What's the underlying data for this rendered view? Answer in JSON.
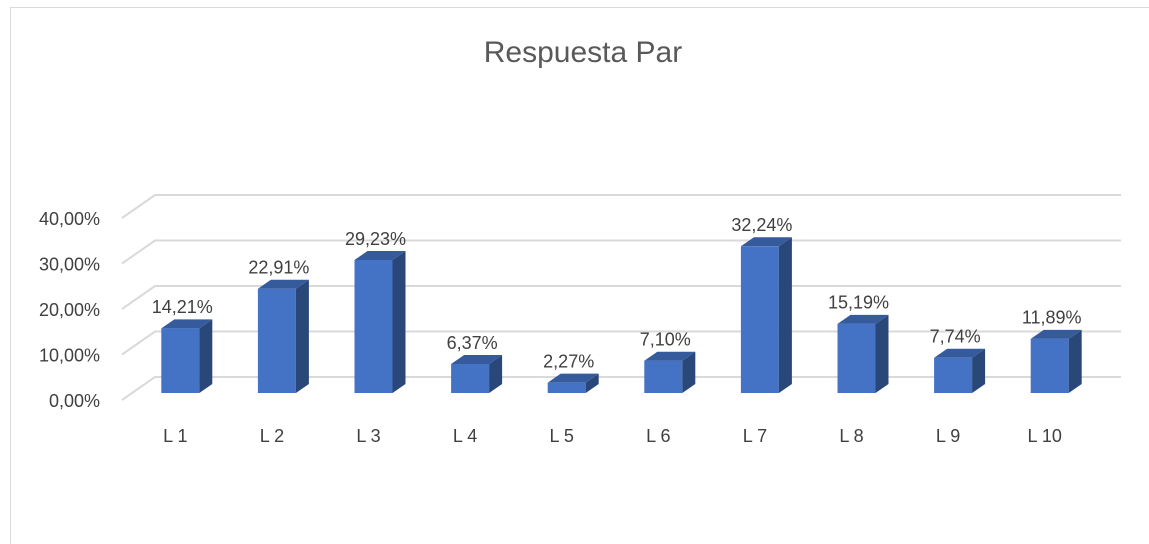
{
  "chart_data": {
    "type": "bar3d",
    "title": "Respuesta Par",
    "categories": [
      "L 1",
      "L 2",
      "L 3",
      "L 4",
      "L 5",
      "L 6",
      "L 7",
      "L 8",
      "L 9",
      "L 10"
    ],
    "values": [
      14.21,
      22.91,
      29.23,
      6.37,
      2.27,
      7.1,
      32.24,
      15.19,
      7.74,
      11.89
    ],
    "value_labels": [
      "14,21%",
      "22,91%",
      "29,23%",
      "6,37%",
      "2,27%",
      "7,10%",
      "32,24%",
      "15,19%",
      "7,74%",
      "11,89%"
    ],
    "color": "#4472c4",
    "ylim": [
      0,
      40
    ],
    "yticks": [
      {
        "value": 0,
        "label": "0,00%"
      },
      {
        "value": 10,
        "label": "10,00%"
      },
      {
        "value": 20,
        "label": "20,00%"
      },
      {
        "value": 30,
        "label": "30,00%"
      },
      {
        "value": 40,
        "label": "40,00%"
      }
    ],
    "grid": true
  }
}
